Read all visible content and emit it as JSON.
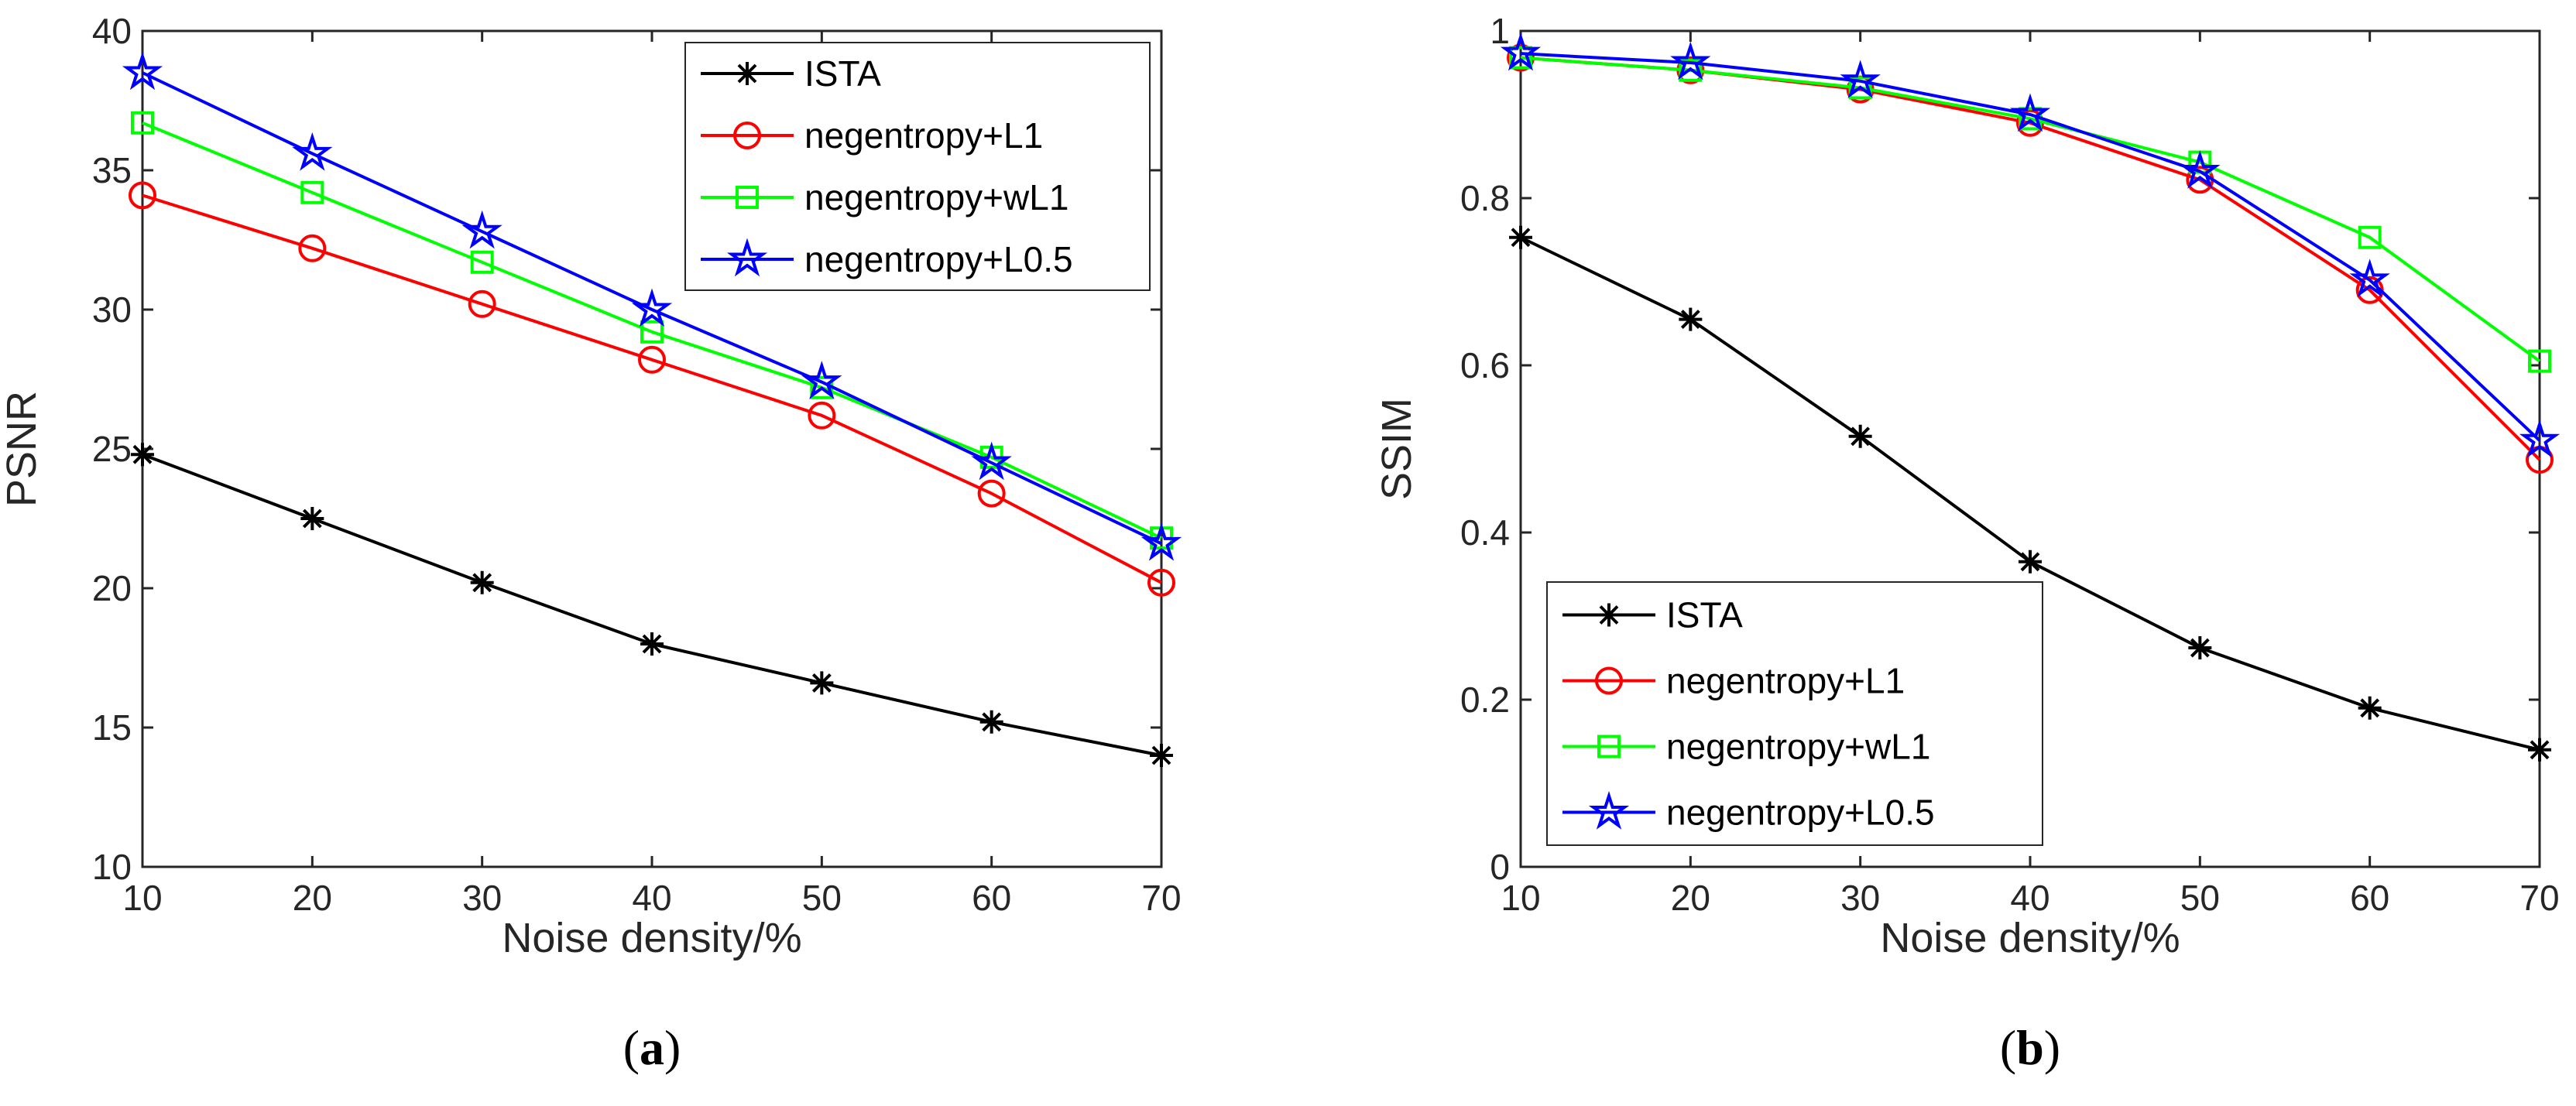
{
  "chart_data": [
    {
      "type": "line",
      "caption_letter": "a",
      "xlabel": "Noise density/%",
      "ylabel": "PSNR",
      "xlim": [
        10,
        70
      ],
      "ylim": [
        10,
        40
      ],
      "xticks": [
        10,
        20,
        30,
        40,
        50,
        60,
        70
      ],
      "yticks": [
        10,
        15,
        20,
        25,
        30,
        35,
        40
      ],
      "legend_location": "top-right",
      "x": [
        10,
        20,
        30,
        40,
        50,
        60,
        70
      ],
      "series": [
        {
          "name": "ISTA",
          "color": "#000000",
          "marker": "asterisk",
          "values": [
            24.8,
            22.5,
            20.2,
            18.0,
            16.6,
            15.2,
            14.0
          ]
        },
        {
          "name": "negentropy+L1",
          "color": "#ff0000",
          "marker": "circle",
          "values": [
            34.1,
            32.2,
            30.2,
            28.2,
            26.2,
            23.4,
            20.2
          ]
        },
        {
          "name": "negentropy+wL1",
          "color": "#00ff00",
          "marker": "square",
          "values": [
            36.7,
            34.2,
            31.7,
            29.2,
            27.2,
            24.7,
            21.8
          ]
        },
        {
          "name": "negentropy+L0.5",
          "color": "#0000ff",
          "marker": "pentagram",
          "values": [
            38.5,
            35.6,
            32.8,
            30.0,
            27.4,
            24.5,
            21.6
          ]
        }
      ]
    },
    {
      "type": "line",
      "caption_letter": "b",
      "xlabel": "Noise density/%",
      "ylabel": "SSIM",
      "xlim": [
        10,
        70
      ],
      "ylim": [
        0,
        1
      ],
      "xticks": [
        10,
        20,
        30,
        40,
        50,
        60,
        70
      ],
      "yticks": [
        0,
        0.2,
        0.4,
        0.6,
        0.8,
        1
      ],
      "legend_location": "bottom-left",
      "x": [
        10,
        20,
        30,
        40,
        50,
        60,
        70
      ],
      "series": [
        {
          "name": "ISTA",
          "color": "#000000",
          "marker": "asterisk",
          "values": [
            0.753,
            0.655,
            0.515,
            0.365,
            0.262,
            0.19,
            0.14
          ]
        },
        {
          "name": "negentropy+L1",
          "color": "#ff0000",
          "marker": "circle",
          "values": [
            0.968,
            0.953,
            0.93,
            0.89,
            0.822,
            0.69,
            0.487
          ]
        },
        {
          "name": "negentropy+wL1",
          "color": "#00ff00",
          "marker": "square",
          "values": [
            0.968,
            0.953,
            0.932,
            0.895,
            0.843,
            0.753,
            0.605
          ]
        },
        {
          "name": "negentropy+L0.5",
          "color": "#0000ff",
          "marker": "pentagram",
          "values": [
            0.973,
            0.962,
            0.94,
            0.9,
            0.832,
            0.702,
            0.51
          ]
        }
      ]
    }
  ]
}
